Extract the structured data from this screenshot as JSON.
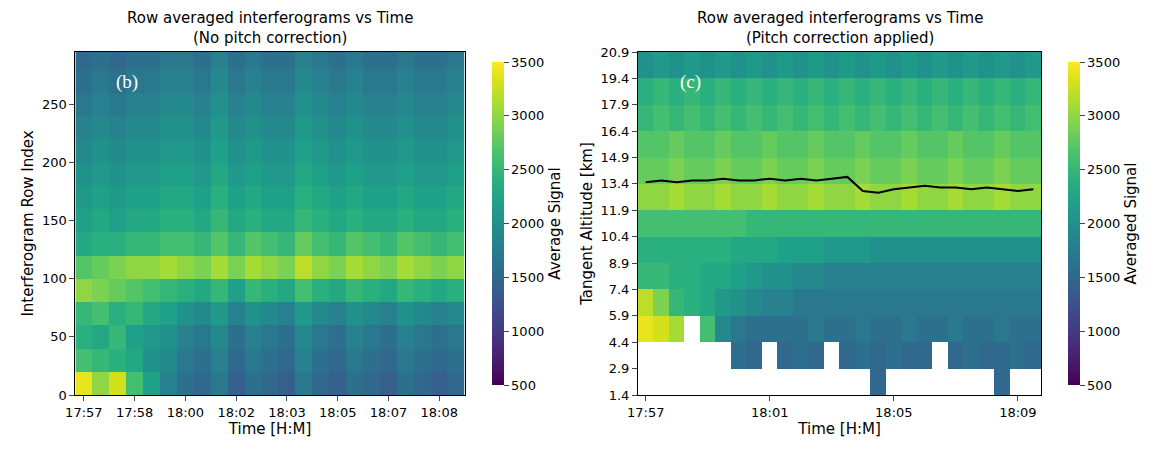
{
  "chart_data": [
    {
      "type": "heatmap",
      "title": "Row averaged interferograms vs Time",
      "subtitle": "(No pitch correction)",
      "annotation": "(b)",
      "x_label": "Time [H:M]",
      "y_label": "Interferogram Row Index",
      "color": "Viridis",
      "grid": false,
      "categories": [
        "17:57",
        null,
        null,
        "17:58",
        null,
        null,
        "18:00",
        null,
        null,
        "18:02",
        null,
        null,
        "18:03",
        null,
        null,
        "18:05",
        null,
        null,
        "18:07",
        null,
        null,
        "18:08",
        null
      ],
      "y": [
        10,
        30,
        50,
        70,
        90,
        110,
        130,
        150,
        170,
        190,
        210,
        230,
        250,
        270,
        290
      ],
      "ylim": [
        0,
        295
      ],
      "yticks": [
        0,
        50,
        100,
        150,
        200,
        250
      ],
      "z": [
        [
          3400,
          3000,
          3300,
          2600,
          2200,
          1800,
          1600,
          1500,
          1700,
          1400,
          1600,
          1500,
          1400,
          1700,
          1500,
          1400,
          1600,
          1500,
          1400,
          1600,
          1500,
          1400,
          1500
        ],
        [
          2600,
          2500,
          2400,
          2300,
          2000,
          1900,
          1700,
          1600,
          1800,
          1500,
          1700,
          1600,
          1500,
          1800,
          1600,
          1500,
          1700,
          1600,
          1500,
          1700,
          1600,
          1500,
          1600
        ],
        [
          2400,
          2300,
          2500,
          2200,
          2100,
          2000,
          1800,
          1700,
          1900,
          1600,
          1800,
          1700,
          1600,
          1900,
          1700,
          1600,
          1800,
          1700,
          1600,
          1800,
          1700,
          1600,
          1700
        ],
        [
          2500,
          2600,
          2400,
          2500,
          2300,
          2200,
          2000,
          1900,
          2100,
          1800,
          2000,
          1900,
          1800,
          2100,
          1900,
          1800,
          2000,
          1900,
          1800,
          2000,
          1900,
          1800,
          1900
        ],
        [
          3000,
          2900,
          2800,
          2700,
          2600,
          2500,
          2400,
          2300,
          2500,
          2200,
          2500,
          2400,
          2300,
          2600,
          2400,
          2300,
          2500,
          2400,
          2300,
          2500,
          2400,
          2300,
          2400
        ],
        [
          2700,
          2800,
          2900,
          3000,
          3000,
          3100,
          3000,
          2900,
          3100,
          2900,
          3100,
          3000,
          2900,
          3200,
          3000,
          2900,
          3100,
          3000,
          2900,
          3100,
          3000,
          2900,
          3000
        ],
        [
          2300,
          2400,
          2400,
          2500,
          2500,
          2600,
          2600,
          2500,
          2700,
          2500,
          2700,
          2600,
          2500,
          2800,
          2600,
          2500,
          2700,
          2600,
          2500,
          2700,
          2600,
          2500,
          2600
        ],
        [
          2200,
          2300,
          2200,
          2300,
          2300,
          2400,
          2400,
          2300,
          2500,
          2300,
          2400,
          2300,
          2300,
          2500,
          2400,
          2300,
          2400,
          2300,
          2300,
          2400,
          2300,
          2300,
          2400
        ],
        [
          2100,
          2200,
          2100,
          2200,
          2200,
          2300,
          2300,
          2200,
          2400,
          2200,
          2300,
          2200,
          2200,
          2400,
          2300,
          2200,
          2300,
          2200,
          2200,
          2300,
          2200,
          2200,
          2300
        ],
        [
          2000,
          2100,
          2000,
          2100,
          2100,
          2200,
          2200,
          2100,
          2300,
          2100,
          2200,
          2100,
          2100,
          2300,
          2200,
          2100,
          2200,
          2100,
          2100,
          2200,
          2100,
          2100,
          2200
        ],
        [
          1900,
          2000,
          1900,
          2000,
          2000,
          2100,
          2100,
          2000,
          2200,
          2000,
          2100,
          2000,
          2000,
          2200,
          2100,
          2000,
          2100,
          2000,
          2000,
          2100,
          2000,
          2000,
          2100
        ],
        [
          1800,
          1900,
          1800,
          1900,
          1900,
          2000,
          2000,
          1900,
          2100,
          1900,
          2000,
          1900,
          1900,
          2100,
          2000,
          1900,
          2000,
          1900,
          1900,
          2000,
          1900,
          1900,
          2000
        ],
        [
          1700,
          1800,
          1700,
          1800,
          1800,
          1900,
          1900,
          1800,
          2000,
          1800,
          1900,
          1800,
          1800,
          2000,
          1900,
          1800,
          1900,
          1800,
          1800,
          1900,
          1800,
          1800,
          1900
        ],
        [
          1600,
          1700,
          1600,
          1700,
          1700,
          1800,
          1800,
          1700,
          1900,
          1700,
          1800,
          1700,
          1700,
          1900,
          1800,
          1700,
          1800,
          1700,
          1700,
          1800,
          1700,
          1700,
          1800
        ],
        [
          1500,
          1600,
          1500,
          1600,
          1600,
          1700,
          1700,
          1600,
          1800,
          1600,
          1700,
          1600,
          1600,
          1800,
          1700,
          1600,
          1700,
          1600,
          1600,
          1700,
          1600,
          1600,
          1700
        ]
      ],
      "colorbar": {
        "label": "Average Signal",
        "range": [
          500,
          3500
        ],
        "ticks": [
          500,
          1000,
          1500,
          2000,
          2500,
          3000,
          3500
        ]
      }
    },
    {
      "type": "heatmap",
      "title": "Row averaged interferograms vs Time",
      "subtitle": "(Pitch correction applied)",
      "annotation": "(c)",
      "x_label": "Time [H:M]",
      "y_label": "Tangent Altitude [km]",
      "color": "Viridis",
      "grid": false,
      "categories": [
        "17:57",
        null,
        null,
        null,
        null,
        null,
        null,
        null,
        "18:01",
        null,
        null,
        null,
        null,
        null,
        null,
        null,
        "18:05",
        null,
        null,
        null,
        null,
        null,
        null,
        null,
        "18:09",
        null
      ],
      "y": [
        2.15,
        3.65,
        5.15,
        6.65,
        8.15,
        9.65,
        11.15,
        12.65,
        14.15,
        15.65,
        17.15,
        18.65,
        20.15
      ],
      "ylim": [
        1.4,
        20.9
      ],
      "yticks": [
        1.4,
        2.9,
        4.4,
        5.9,
        7.4,
        8.9,
        10.4,
        11.9,
        13.4,
        14.9,
        16.4,
        17.9,
        19.4,
        20.9
      ],
      "z": [
        [
          null,
          null,
          null,
          null,
          null,
          null,
          null,
          null,
          null,
          null,
          null,
          null,
          null,
          null,
          null,
          1500,
          null,
          null,
          null,
          null,
          null,
          null,
          null,
          1500,
          null,
          null
        ],
        [
          null,
          null,
          null,
          null,
          null,
          null,
          1600,
          1500,
          null,
          1500,
          1600,
          1500,
          null,
          1500,
          1600,
          1500,
          1600,
          1500,
          1500,
          null,
          1500,
          1600,
          1500,
          1500,
          1600,
          1500
        ],
        [
          3400,
          3300,
          3100,
          null,
          2600,
          1900,
          1700,
          1600,
          1600,
          1600,
          1600,
          1700,
          1600,
          1600,
          1700,
          1600,
          1600,
          1700,
          1600,
          1600,
          1700,
          1600,
          1600,
          1700,
          1600,
          1600
        ],
        [
          3200,
          2900,
          2500,
          2400,
          2300,
          2100,
          2000,
          1900,
          1800,
          1800,
          1700,
          1700,
          1700,
          1700,
          1700,
          1700,
          1700,
          1700,
          1700,
          1700,
          1700,
          1700,
          1700,
          1700,
          1700,
          1700
        ],
        [
          2500,
          2500,
          2400,
          2400,
          2300,
          2300,
          2200,
          2100,
          2000,
          2000,
          1900,
          1900,
          1800,
          1800,
          1800,
          1800,
          1800,
          1800,
          1800,
          1800,
          1800,
          1800,
          1800,
          1800,
          1800,
          1800
        ],
        [
          2400,
          2400,
          2400,
          2400,
          2400,
          2400,
          2300,
          2300,
          2300,
          2200,
          2200,
          2200,
          2100,
          2100,
          2100,
          2000,
          2000,
          2000,
          2000,
          2000,
          2000,
          2000,
          2000,
          2000,
          2000,
          2000
        ],
        [
          2600,
          2600,
          2600,
          2600,
          2600,
          2600,
          2600,
          2500,
          2500,
          2500,
          2500,
          2500,
          2500,
          2500,
          2500,
          2500,
          2500,
          2500,
          2500,
          2500,
          2500,
          2500,
          2500,
          2500,
          2500,
          2500
        ],
        [
          3000,
          3000,
          3100,
          3000,
          3000,
          3100,
          3000,
          3000,
          3100,
          3000,
          3000,
          3100,
          3000,
          3000,
          3100,
          3000,
          3000,
          3100,
          3000,
          3000,
          3100,
          3000,
          3000,
          3100,
          3000,
          3000
        ],
        [
          2800,
          2800,
          2900,
          2800,
          2800,
          2900,
          2800,
          2800,
          2900,
          2800,
          2800,
          2900,
          2800,
          2800,
          2900,
          2800,
          2800,
          2900,
          2800,
          2800,
          2900,
          2800,
          2800,
          2900,
          2800,
          2800
        ],
        [
          2700,
          2700,
          2800,
          2700,
          2700,
          2800,
          2700,
          2700,
          2800,
          2700,
          2700,
          2800,
          2700,
          2700,
          2800,
          2700,
          2700,
          2800,
          2700,
          2700,
          2800,
          2700,
          2700,
          2800,
          2700,
          2700
        ],
        [
          2500,
          2600,
          2500,
          2600,
          2500,
          2600,
          2500,
          2600,
          2500,
          2600,
          2500,
          2600,
          2500,
          2600,
          2500,
          2600,
          2500,
          2600,
          2500,
          2600,
          2500,
          2600,
          2500,
          2600,
          2500,
          2600
        ],
        [
          2400,
          2500,
          2400,
          2500,
          2400,
          2500,
          2400,
          2500,
          2400,
          2500,
          2400,
          2500,
          2400,
          2500,
          2400,
          2500,
          2400,
          2500,
          2400,
          2500,
          2400,
          2500,
          2400,
          2500,
          2400,
          2500
        ],
        [
          2000,
          2100,
          2000,
          2100,
          2000,
          2100,
          2000,
          2100,
          2000,
          2100,
          2000,
          2100,
          2000,
          2100,
          2000,
          2100,
          2000,
          2100,
          2000,
          2100,
          2000,
          2100,
          2000,
          2100,
          2000,
          2100
        ]
      ],
      "colorbar": {
        "label": "Averaged Signal",
        "range": [
          500,
          3500
        ],
        "ticks": [
          500,
          1000,
          1500,
          2000,
          2500,
          3000,
          3500
        ]
      },
      "series": [
        {
          "type": "line",
          "color": "#000000",
          "values": [
            13.5,
            13.6,
            13.5,
            13.6,
            13.6,
            13.7,
            13.6,
            13.6,
            13.7,
            13.6,
            13.7,
            13.6,
            13.7,
            13.8,
            13.0,
            12.9,
            13.1,
            13.2,
            13.3,
            13.2,
            13.2,
            13.1,
            13.2,
            13.1,
            13.0,
            13.1
          ]
        }
      ]
    }
  ]
}
